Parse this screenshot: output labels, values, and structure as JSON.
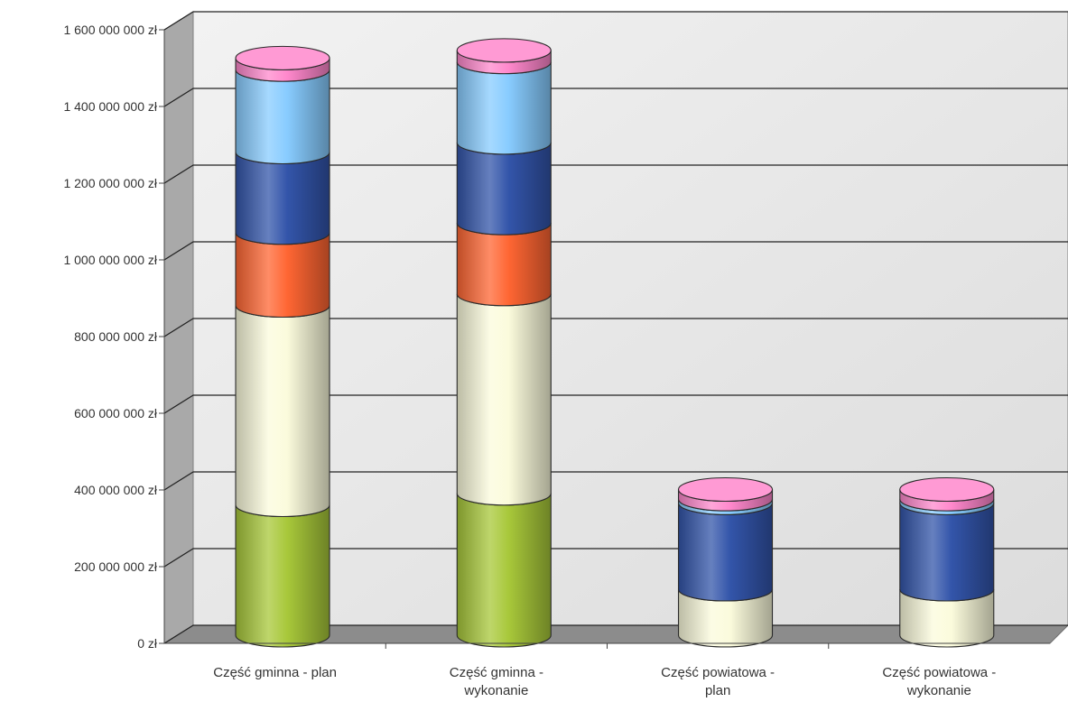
{
  "chart_data": {
    "type": "bar",
    "stacked": true,
    "style": "3d-cylinder",
    "title": "",
    "xlabel": "",
    "ylabel": "",
    "ylim": [
      0,
      1600000000
    ],
    "y_ticks": [
      "0 zł",
      "200 000 000 zł",
      "400 000 000 zł",
      "600 000 000 zł",
      "800 000 000 zł",
      "1 000 000 000 zł",
      "1 200 000 000 zł",
      "1 400 000 000 zł",
      "1 600 000 000 zł"
    ],
    "grid": true,
    "legend": "none",
    "categories": [
      [
        "Część gminna - plan"
      ],
      [
        "Część gminna -",
        "wykonanie"
      ],
      [
        "Część powiatowa -",
        "plan"
      ],
      [
        "Część powiatowa -",
        "wykonanie"
      ]
    ],
    "series": [
      {
        "color": "#a8c83a",
        "values": [
          340000000,
          370000000,
          0,
          0
        ]
      },
      {
        "color": "#fbfbdc",
        "values": [
          520000000,
          520000000,
          120000000,
          120000000
        ]
      },
      {
        "color": "#ff6633",
        "values": [
          190000000,
          185000000,
          0,
          0
        ]
      },
      {
        "color": "#3355aa",
        "values": [
          210000000,
          210000000,
          225000000,
          225000000
        ]
      },
      {
        "color": "#88ccff",
        "values": [
          215000000,
          210000000,
          10000000,
          10000000
        ]
      },
      {
        "color": "#ff88cc",
        "values": [
          30000000,
          30000000,
          25000000,
          25000000
        ]
      }
    ]
  }
}
